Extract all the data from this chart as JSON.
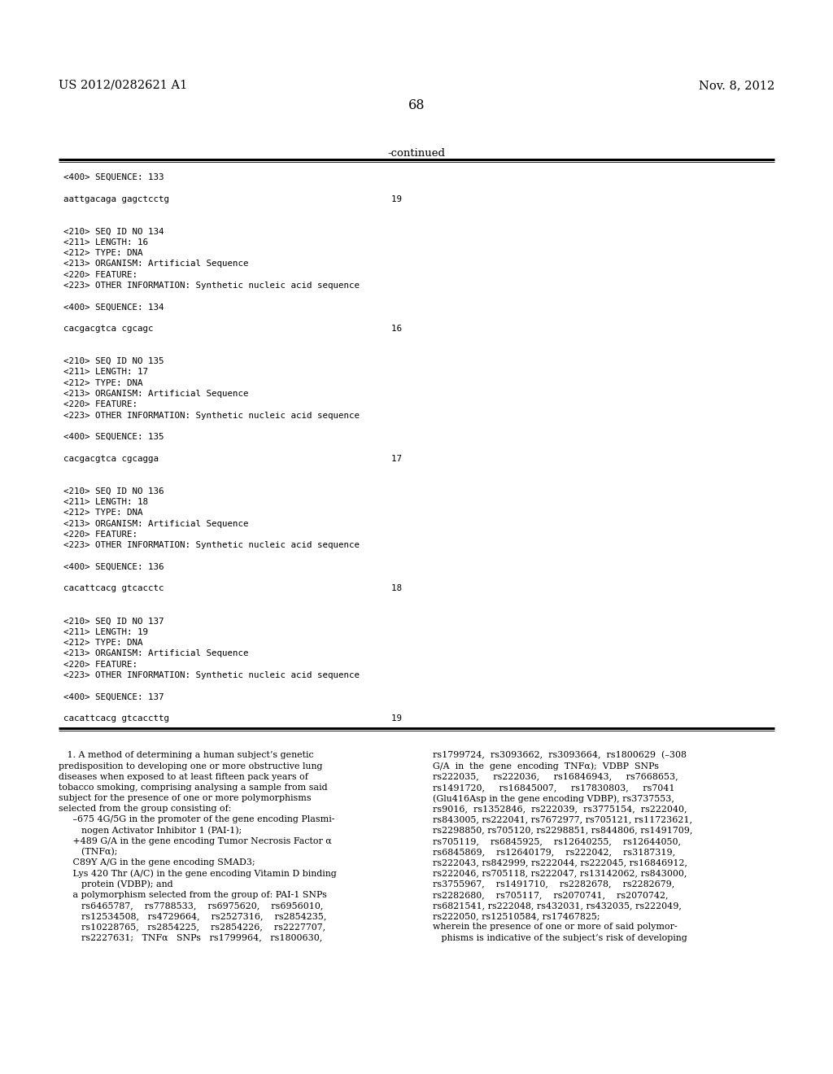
{
  "bg_color": "#ffffff",
  "text_color": "#000000",
  "header_left": "US 2012/0282621 A1",
  "header_right": "Nov. 8, 2012",
  "page_number": "68",
  "continued_label": "-continued",
  "mono_lines_top": [
    "<400> SEQUENCE: 133",
    "",
    "aattgacaga gagctcctg                                          19",
    "",
    "",
    "<210> SEQ ID NO 134",
    "<211> LENGTH: 16",
    "<212> TYPE: DNA",
    "<213> ORGANISM: Artificial Sequence",
    "<220> FEATURE:",
    "<223> OTHER INFORMATION: Synthetic nucleic acid sequence",
    "",
    "<400> SEQUENCE: 134",
    "",
    "cacgacgtca cgcagc                                             16",
    "",
    "",
    "<210> SEQ ID NO 135",
    "<211> LENGTH: 17",
    "<212> TYPE: DNA",
    "<213> ORGANISM: Artificial Sequence",
    "<220> FEATURE:",
    "<223> OTHER INFORMATION: Synthetic nucleic acid sequence",
    "",
    "<400> SEQUENCE: 135",
    "",
    "cacgacgtca cgcagga                                            17",
    "",
    "",
    "<210> SEQ ID NO 136",
    "<211> LENGTH: 18",
    "<212> TYPE: DNA",
    "<213> ORGANISM: Artificial Sequence",
    "<220> FEATURE:",
    "<223> OTHER INFORMATION: Synthetic nucleic acid sequence",
    "",
    "<400> SEQUENCE: 136",
    "",
    "cacattcacg gtcacctc                                           18",
    "",
    "",
    "<210> SEQ ID NO 137",
    "<211> LENGTH: 19",
    "<212> TYPE: DNA",
    "<213> ORGANISM: Artificial Sequence",
    "<220> FEATURE:",
    "<223> OTHER INFORMATION: Synthetic nucleic acid sequence",
    "",
    "<400> SEQUENCE: 137",
    "",
    "cacattcacg gtcaccttg                                          19"
  ],
  "col1_text": [
    "   1. A method of determining a human subject’s genetic",
    "predisposition to developing one or more obstructive lung",
    "diseases when exposed to at least fifteen pack years of",
    "tobacco smoking, comprising analysing a sample from said",
    "subject for the presence of one or more polymorphisms",
    "selected from the group consisting of:",
    "     –675 4G/5G in the promoter of the gene encoding Plasmi-",
    "        nogen Activator Inhibitor 1 (PAI-1);",
    "     +489 G/A in the gene encoding Tumor Necrosis Factor α",
    "        (TNFα);",
    "     C89Y A/G in the gene encoding SMAD3;",
    "     Lys 420 Thr (A/C) in the gene encoding Vitamin D binding",
    "        protein (VDBP); and",
    "     a polymorphism selected from the group of: PAI-1 SNPs",
    "        rs6465787,    rs7788533,    rs6975620,    rs6956010,",
    "        rs12534508,   rs4729664,    rs2527316,    rs2854235,",
    "        rs10228765,   rs2854225,    rs2854226,    rs2227707,",
    "        rs2227631;   TNFα   SNPs   rs1799964,   rs1800630,"
  ],
  "col2_text": [
    "rs1799724,  rs3093662,  rs3093664,  rs1800629  (–308",
    "G/A  in  the  gene  encoding  TNFα);  VDBP  SNPs",
    "rs222035,     rs222036,     rs16846943,     rs7668653,",
    "rs1491720,     rs16845007,     rs17830803,     rs7041",
    "(Glu416Asp in the gene encoding VDBP), rs3737553,",
    "rs9016,  rs1352846,  rs222039,  rs3775154,  rs222040,",
    "rs843005, rs222041, rs7672977, rs705121, rs11723621,",
    "rs2298850, rs705120, rs2298851, rs844806, rs1491709,",
    "rs705119,    rs6845925,    rs12640255,    rs12644050,",
    "rs6845869,    rs12640179,    rs222042,    rs3187319,",
    "rs222043, rs842999, rs222044, rs222045, rs16846912,",
    "rs222046, rs705118, rs222047, rs13142062, rs843000,",
    "rs3755967,    rs1491710,    rs2282678,    rs2282679,",
    "rs2282680,    rs705117,    rs2070741,    rs2070742,",
    "rs6821541, rs222048, rs432031, rs432035, rs222049,",
    "rs222050, rs12510584, rs17467825;",
    "wherein the presence of one or more of said polymor-",
    "   phisms is indicative of the subject’s risk of developing"
  ]
}
